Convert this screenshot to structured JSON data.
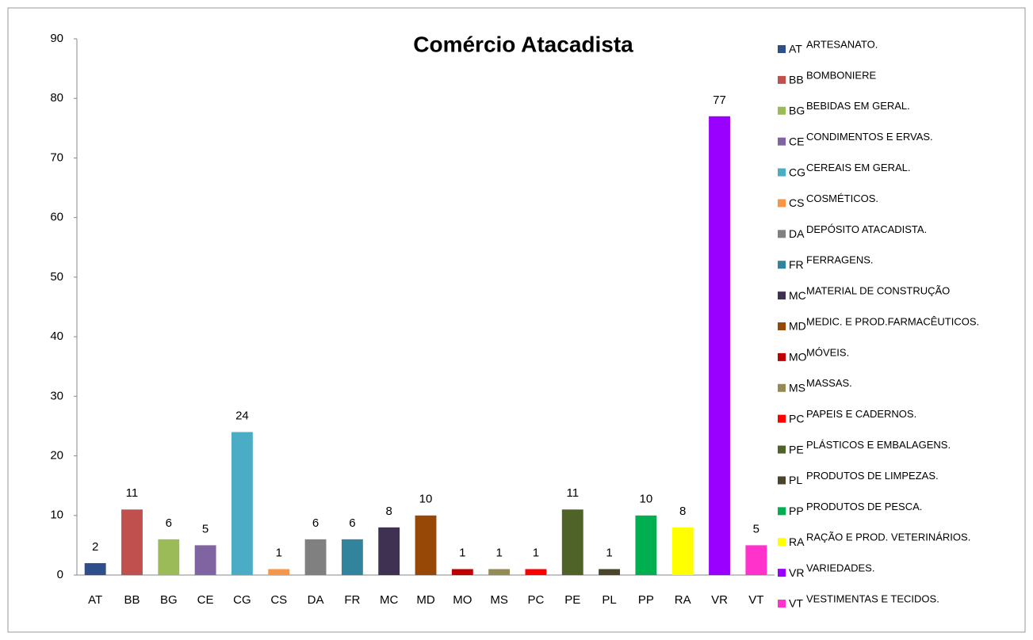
{
  "chart_data": {
    "type": "bar",
    "title": "Comércio Atacadista",
    "categories": [
      "AT",
      "BB",
      "BG",
      "CE",
      "CG",
      "CS",
      "DA",
      "FR",
      "MC",
      "MD",
      "MO",
      "MS",
      "PC",
      "PE",
      "PL",
      "PP",
      "RA",
      "VR",
      "VT"
    ],
    "descriptions": [
      "ARTESANATO.",
      "BOMBONIERE",
      "BEBIDAS EM GERAL.",
      "CONDIMENTOS E ERVAS.",
      "CEREAIS EM GERAL.",
      "COSMÉTICOS.",
      "DEPÓSITO ATACADISTA.",
      "FERRAGENS.",
      "MATERIAL DE CONSTRUÇÃO",
      "MEDIC. E PROD.FARMACÊUTICOS.",
      "MÓVEIS.",
      "MASSAS.",
      "PAPEIS E CADERNOS.",
      "PLÁSTICOS E EMBALAGENS.",
      "PRODUTOS DE LIMPEZAS.",
      "PRODUTOS DE PESCA.",
      "RAÇÃO E PROD. VETERINÁRIOS.",
      "VARIEDADES.",
      "VESTIMENTAS E TECIDOS."
    ],
    "values": [
      2,
      11,
      6,
      5,
      24,
      1,
      6,
      6,
      8,
      10,
      1,
      1,
      1,
      11,
      1,
      10,
      8,
      77,
      5
    ],
    "colors": [
      "#2e4f8a",
      "#c0504d",
      "#9bbb59",
      "#8064a2",
      "#4bacc6",
      "#f79646",
      "#808080",
      "#31849b",
      "#3f3151",
      "#974806",
      "#c00000",
      "#948a54",
      "#ff0000",
      "#4f6228",
      "#4a452a",
      "#00b050",
      "#ffff00",
      "#9900ff",
      "#ff33cc"
    ],
    "ylim": [
      0,
      90
    ],
    "yticks": [
      0,
      10,
      20,
      30,
      40,
      50,
      60,
      70,
      80,
      90
    ],
    "grid": false,
    "legend": "right"
  }
}
